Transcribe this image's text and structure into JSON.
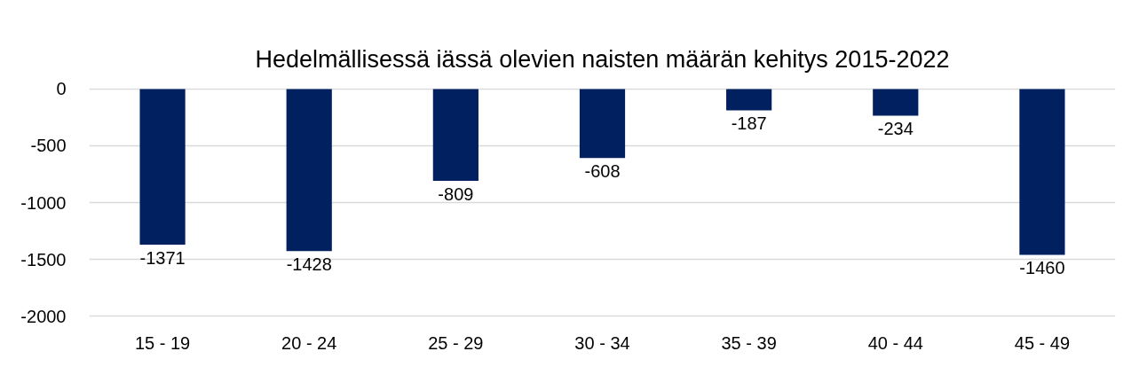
{
  "chart_data": {
    "type": "bar",
    "title": "Hedelmällisessä iässä olevien naisten määrän kehitys 2015-2022",
    "categories": [
      "15 - 19",
      "20 - 24",
      "25 - 29",
      "30 - 34",
      "35 - 39",
      "40 - 44",
      "45 - 49"
    ],
    "values": [
      -1371,
      -1428,
      -809,
      -608,
      -187,
      -234,
      -1460
    ],
    "color": "#002060",
    "ylim": [
      -2000,
      0
    ],
    "yticks": [
      0,
      -500,
      -1000,
      -1500,
      -2000
    ],
    "grid": "y",
    "data_labels": true
  }
}
